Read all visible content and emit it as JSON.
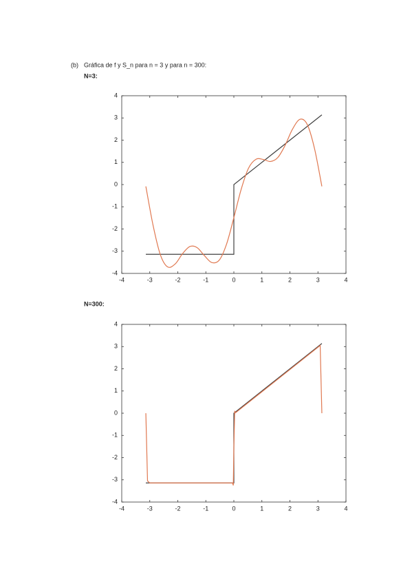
{
  "header": {
    "label": "(b)",
    "text": "Gráfica de f y S_n para n = 3 y para n = 300:"
  },
  "headings": [
    "N=3:",
    "N=300:"
  ],
  "chart_data": [
    {
      "type": "line",
      "xlim": [
        -4,
        4
      ],
      "ylim": [
        -4,
        4
      ],
      "xticks": [
        -4,
        -3,
        -2,
        -1,
        0,
        1,
        2,
        3,
        4
      ],
      "yticks": [
        -4,
        -3,
        -2,
        -1,
        0,
        1,
        2,
        3,
        4
      ],
      "series": [
        {
          "color": "#404040",
          "x": [
            -3.14,
            0,
            0,
            3.14
          ],
          "values": [
            -3.14,
            -3.14,
            0,
            3.14
          ]
        },
        {
          "color": "#e07850",
          "x": [
            -3.14,
            -2.88,
            -2.62,
            -2.36,
            -2.09,
            -1.83,
            -1.57,
            -1.31,
            -1.05,
            -0.79,
            -0.52,
            -0.26,
            0,
            0.26,
            0.52,
            0.79,
            1.05,
            1.31,
            1.57,
            1.83,
            2.09,
            2.36,
            2.62,
            2.88,
            3.14
          ],
          "values": [
            -0.08,
            -1.85,
            -3.17,
            -3.71,
            -3.57,
            -3.11,
            -2.79,
            -2.84,
            -3.2,
            -3.51,
            -3.4,
            -2.68,
            -1.49,
            -0.22,
            0.73,
            1.14,
            1.13,
            1.04,
            1.22,
            1.77,
            2.49,
            2.94,
            2.7,
            1.61,
            -0.08
          ]
        }
      ]
    },
    {
      "type": "line",
      "xlim": [
        -4,
        4
      ],
      "ylim": [
        -4,
        4
      ],
      "xticks": [
        -4,
        -3,
        -2,
        -1,
        0,
        1,
        2,
        3,
        4
      ],
      "yticks": [
        -4,
        -3,
        -2,
        -1,
        0,
        1,
        2,
        3,
        4
      ],
      "series": [
        {
          "color": "#404040",
          "x": [
            -3.14,
            0,
            0,
            3.14
          ],
          "values": [
            -3.14,
            -3.14,
            0,
            3.14
          ]
        },
        {
          "color": "#e07850",
          "x": [
            -3.14,
            -3.08,
            -3.0,
            -0.05,
            -0.02,
            0,
            0.03,
            0.06,
            3.08,
            3.14
          ],
          "values": [
            0,
            -3.05,
            -3.14,
            -3.14,
            -3.25,
            -1.57,
            0.1,
            0.02,
            3.05,
            0
          ]
        }
      ]
    }
  ]
}
